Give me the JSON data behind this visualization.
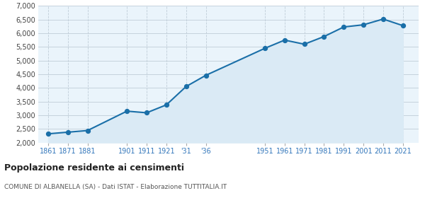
{
  "population": [
    2320,
    2380,
    2440,
    3150,
    3090,
    3380,
    4050,
    4460,
    5450,
    5750,
    5600,
    5880,
    6230,
    6310,
    6520,
    6280
  ],
  "x_positions": [
    0,
    1,
    2,
    4,
    5,
    6,
    7,
    8,
    11,
    12,
    13,
    14,
    15,
    16,
    17,
    18
  ],
  "xtick_labels": [
    "1861",
    "1871",
    "1881",
    "1901",
    "1911",
    "1921",
    "'31",
    "'36",
    "1951",
    "1961",
    "1971",
    "1981",
    "1991",
    "2001",
    "2011",
    "2021"
  ],
  "line_color": "#1a6fa8",
  "fill_color": "#daeaf5",
  "marker_color": "#1a6fa8",
  "bg_color": "#eaf4fb",
  "grid_color": "#c0cdd8",
  "title": "Popolazione residente ai censimenti",
  "subtitle": "COMUNE DI ALBANELLA (SA) - Dati ISTAT - Elaborazione TUTTITALIA.IT",
  "ylim": [
    2000,
    7000
  ],
  "yticks": [
    2000,
    2500,
    3000,
    3500,
    4000,
    4500,
    5000,
    5500,
    6000,
    6500,
    7000
  ],
  "xlim": [
    -0.5,
    18.8
  ]
}
